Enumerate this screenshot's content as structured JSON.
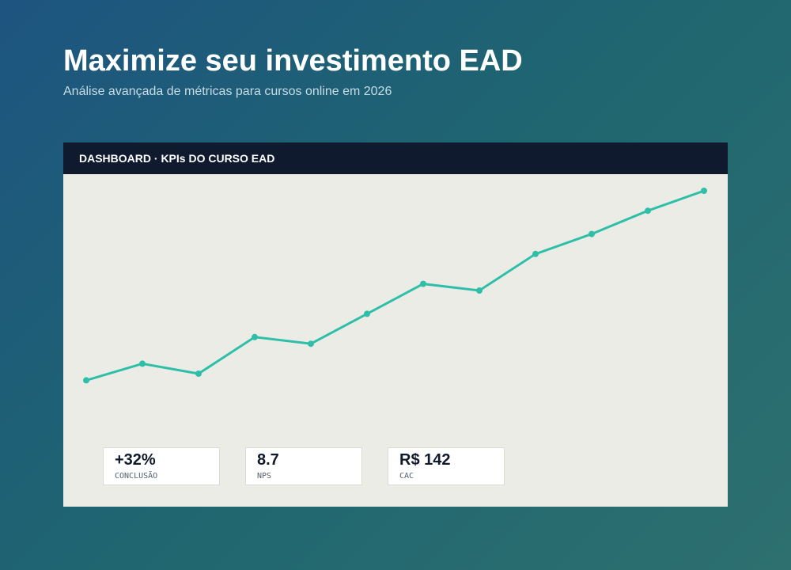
{
  "header": {
    "title": "Maximize seu investimento EAD",
    "subtitle": "Análise avançada de métricas para cursos online em 2026"
  },
  "dashboard": {
    "label": "DASHBOARD · KPIs DO CURSO EAD",
    "kpis": [
      {
        "value": "+32%",
        "label": "CONCLUSÃO"
      },
      {
        "value": "8.7",
        "label": "NPS"
      },
      {
        "value": "R$ 142",
        "label": "CAC"
      }
    ]
  },
  "chart_data": {
    "type": "line",
    "categories": [
      null,
      null,
      null,
      null,
      null,
      null,
      null,
      null,
      null,
      null,
      null,
      null
    ],
    "values": [
      38,
      43,
      40,
      51,
      49,
      58,
      67,
      65,
      76,
      82,
      89,
      95
    ],
    "color": "#2fbfa9",
    "ylim": [
      0,
      100
    ]
  }
}
